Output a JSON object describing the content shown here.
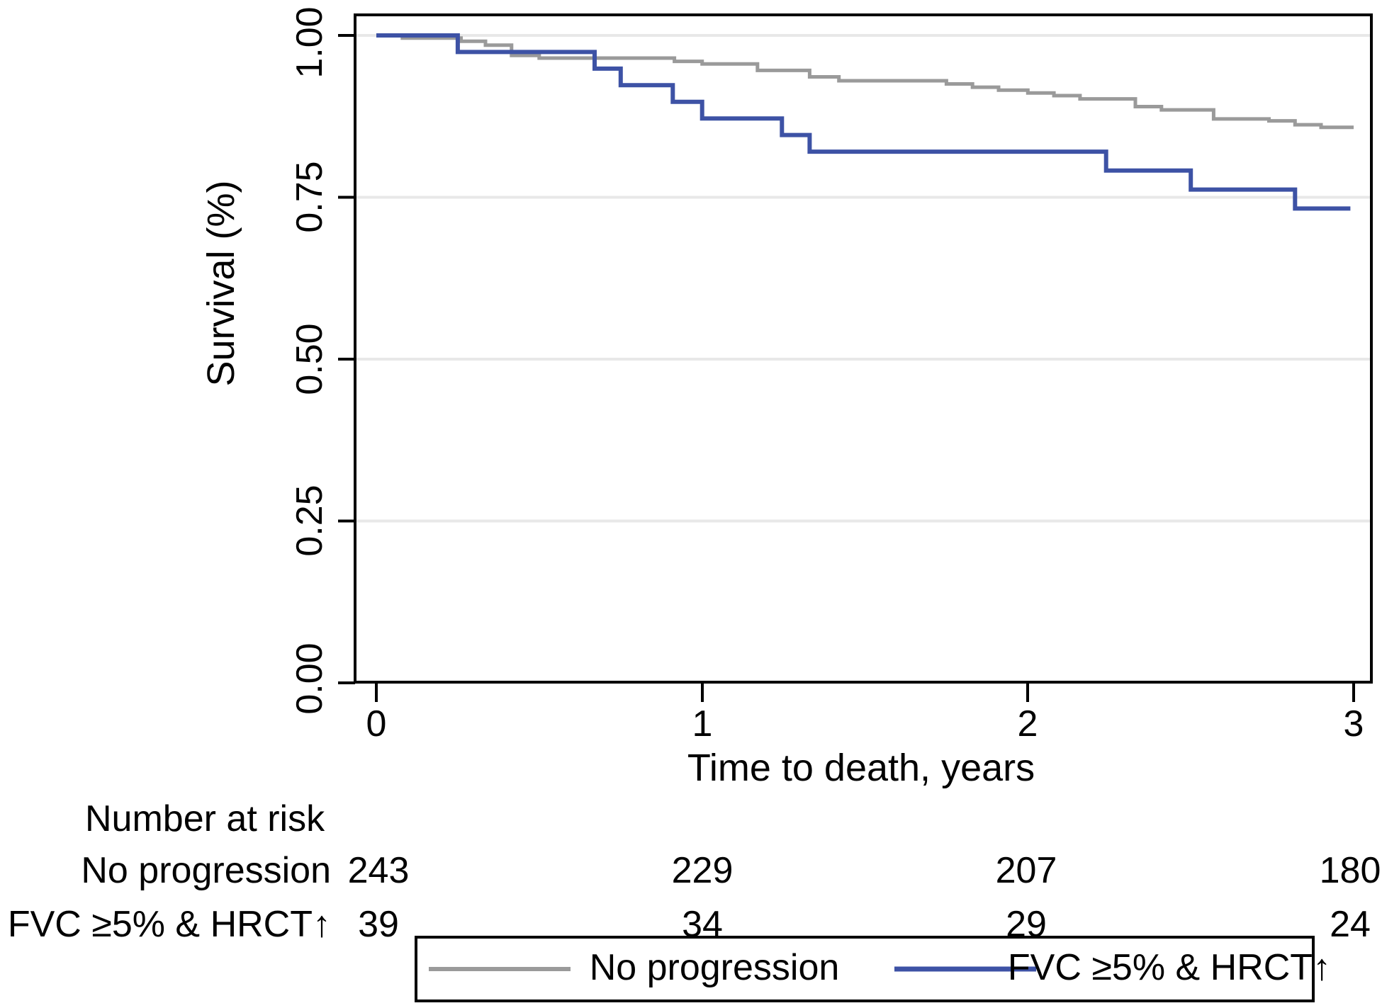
{
  "figure": {
    "background": "#ffffff",
    "y_axis": {
      "title": "Survival (%)",
      "tick_labels": [
        "1.00",
        "0.75",
        "0.50",
        "0.25",
        "0.00"
      ]
    },
    "x_axis": {
      "title": "Time to death, years",
      "tick_labels": [
        "0",
        "1",
        "2",
        "3"
      ]
    },
    "risk_table": {
      "header": "Number at risk",
      "rows": [
        {
          "label": "No progression",
          "values": [
            "243",
            "229",
            "207",
            "180"
          ]
        },
        {
          "label": "FVC ≥5% & HRCT↑",
          "values": [
            "39",
            "34",
            "29",
            "24"
          ]
        }
      ]
    },
    "legend": {
      "entries": [
        {
          "label": "No progression",
          "color": "#9A9A9A"
        },
        {
          "label": "FVC ≥5% & HRCT↑",
          "color": "#3D52A5"
        }
      ]
    }
  },
  "chart_data": {
    "type": "line",
    "subtype": "kaplan-meier-step",
    "title": "",
    "xlabel": "Time to death, years",
    "ylabel": "Survival (%)",
    "xlim": [
      0,
      3
    ],
    "ylim": [
      0.0,
      1.0
    ],
    "x_ticks": [
      0,
      1,
      2,
      3
    ],
    "y_ticks": [
      0.0,
      0.25,
      0.5,
      0.75,
      1.0
    ],
    "grid": "horizontal",
    "grid_color": "#E8E8E8",
    "axis_color": "#000000",
    "legend_position": "bottom",
    "series": [
      {
        "name": "No progression",
        "color": "#9A9A9A",
        "stroke_width": 5,
        "end_x": 3.0,
        "points": [
          [
            0.0,
            1.0
          ],
          [
            0.08,
            0.996
          ],
          [
            0.26,
            0.991
          ],
          [
            0.335,
            0.985
          ],
          [
            0.415,
            0.969
          ],
          [
            0.5,
            0.965
          ],
          [
            0.915,
            0.96
          ],
          [
            1.0,
            0.956
          ],
          [
            1.17,
            0.946
          ],
          [
            1.33,
            0.936
          ],
          [
            1.42,
            0.93
          ],
          [
            1.75,
            0.925
          ],
          [
            1.83,
            0.92
          ],
          [
            1.91,
            0.9155
          ],
          [
            2.0,
            0.911
          ],
          [
            2.08,
            0.907
          ],
          [
            2.16,
            0.902
          ],
          [
            2.33,
            0.89
          ],
          [
            2.41,
            0.885
          ],
          [
            2.57,
            0.871
          ],
          [
            2.74,
            0.868
          ],
          [
            2.82,
            0.862
          ],
          [
            2.9,
            0.858
          ]
        ]
      },
      {
        "name": "FVC ≥5% & HRCT↑",
        "color": "#3D52A5",
        "stroke_width": 6,
        "end_x": 2.99,
        "points": [
          [
            0.0,
            1.0
          ],
          [
            0.25,
            0.9744
          ],
          [
            0.67,
            0.9487
          ],
          [
            0.75,
            0.9231
          ],
          [
            0.91,
            0.8974
          ],
          [
            1.0,
            0.8718
          ],
          [
            1.245,
            0.8462
          ],
          [
            1.33,
            0.8205
          ],
          [
            2.24,
            0.7912
          ],
          [
            2.5,
            0.7619
          ],
          [
            2.82,
            0.7326
          ]
        ]
      }
    ],
    "number_at_risk": {
      "times": [
        0,
        1,
        2,
        3
      ],
      "rows": [
        {
          "label": "No progression",
          "counts": [
            243,
            229,
            207,
            180
          ]
        },
        {
          "label": "FVC ≥5% & HRCT↑",
          "counts": [
            39,
            34,
            29,
            24
          ]
        }
      ]
    }
  }
}
